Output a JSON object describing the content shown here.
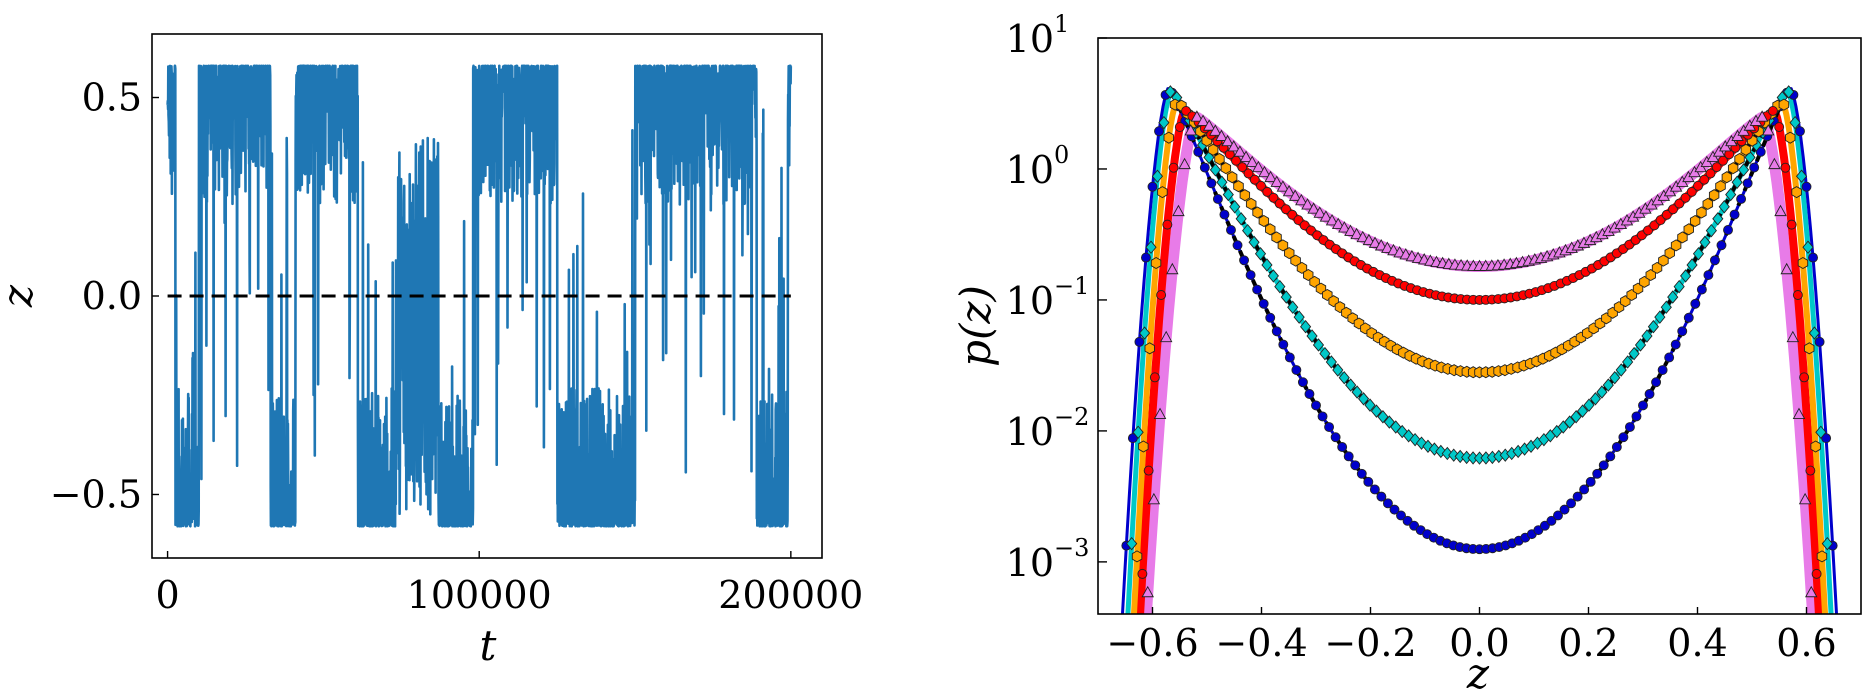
{
  "chart_data": [
    {
      "type": "line",
      "xlabel": "t",
      "ylabel": "z",
      "xlim": [
        -5000,
        210000
      ],
      "ylim": [
        -0.66,
        0.66
      ],
      "xticks": [
        0,
        100000,
        200000
      ],
      "xtick_labels": [
        "0",
        "100000",
        "200000"
      ],
      "yticks": [
        -0.5,
        0.0,
        0.5
      ],
      "ytick_labels": [
        "−0.5",
        "0.0",
        "0.5"
      ],
      "grid": false,
      "series": [
        {
          "color": "#1f77b4",
          "segments": [
            {
              "t0": 0,
              "t1": 2500,
              "state": 1
            },
            {
              "t0": 2500,
              "t1": 10000,
              "state": -1
            },
            {
              "t0": 10000,
              "t1": 33000,
              "state": 1
            },
            {
              "t0": 33000,
              "t1": 41000,
              "state": -1
            },
            {
              "t0": 41000,
              "t1": 61000,
              "state": 1
            },
            {
              "t0": 61000,
              "t1": 73000,
              "state": -1
            },
            {
              "t0": 73000,
              "t1": 87000,
              "state": 0
            },
            {
              "t0": 87000,
              "t1": 98000,
              "state": -1
            },
            {
              "t0": 98000,
              "t1": 125000,
              "state": 1
            },
            {
              "t0": 125000,
              "t1": 150000,
              "state": -1
            },
            {
              "t0": 150000,
              "t1": 189000,
              "state": 1
            },
            {
              "t0": 189000,
              "t1": 199000,
              "state": -1
            },
            {
              "t0": 199000,
              "t1": 200000,
              "state": 1
            }
          ]
        },
        {
          "style": "dashed",
          "color": "#000000",
          "x": [
            0,
            200000
          ],
          "y": [
            0.0,
            0.0
          ]
        }
      ]
    },
    {
      "type": "line",
      "xlabel": "z",
      "ylabel": "p(z)",
      "xlim": [
        -0.7,
        0.7
      ],
      "yscale": "log",
      "ylim": [
        0.0004,
        10
      ],
      "xticks": [
        -0.6,
        -0.4,
        -0.2,
        0.0,
        0.2,
        0.4,
        0.6
      ],
      "xtick_labels": [
        "−0.6",
        "−0.4",
        "−0.2",
        "0.0",
        "0.2",
        "0.4",
        "0.6"
      ],
      "yticks": [
        0.001,
        0.01,
        0.1,
        1,
        10
      ],
      "ytick_mantissa": [
        "10",
        "10",
        "10",
        "10",
        "10"
      ],
      "ytick_exponents": [
        "−3",
        "−2",
        "−1",
        "0",
        "1"
      ],
      "grid": false,
      "legend": "none",
      "series": [
        {
          "color": "#0000cc",
          "marker": "circle",
          "peak_z": 0.57,
          "peak_p": 4.2,
          "center_p": 0.00125,
          "edge_z": 0.66
        },
        {
          "color": "#00c8c8",
          "marker": "diamond",
          "peak_z": 0.565,
          "peak_p": 4.0,
          "center_p": 0.0062,
          "edge_z": 0.65
        },
        {
          "color": "#ffa500",
          "marker": "hexagon",
          "peak_z": 0.555,
          "peak_p": 3.3,
          "center_p": 0.028,
          "edge_z": 0.64
        },
        {
          "color": "#ff0000",
          "marker": "circle",
          "peak_z": 0.54,
          "peak_p": 2.8,
          "center_p": 0.1,
          "edge_z": 0.63
        },
        {
          "color": "#e87be8",
          "marker": "triangle",
          "peak_z": 0.52,
          "peak_p": 2.5,
          "center_p": 0.18,
          "edge_z": 0.62
        }
      ]
    }
  ]
}
